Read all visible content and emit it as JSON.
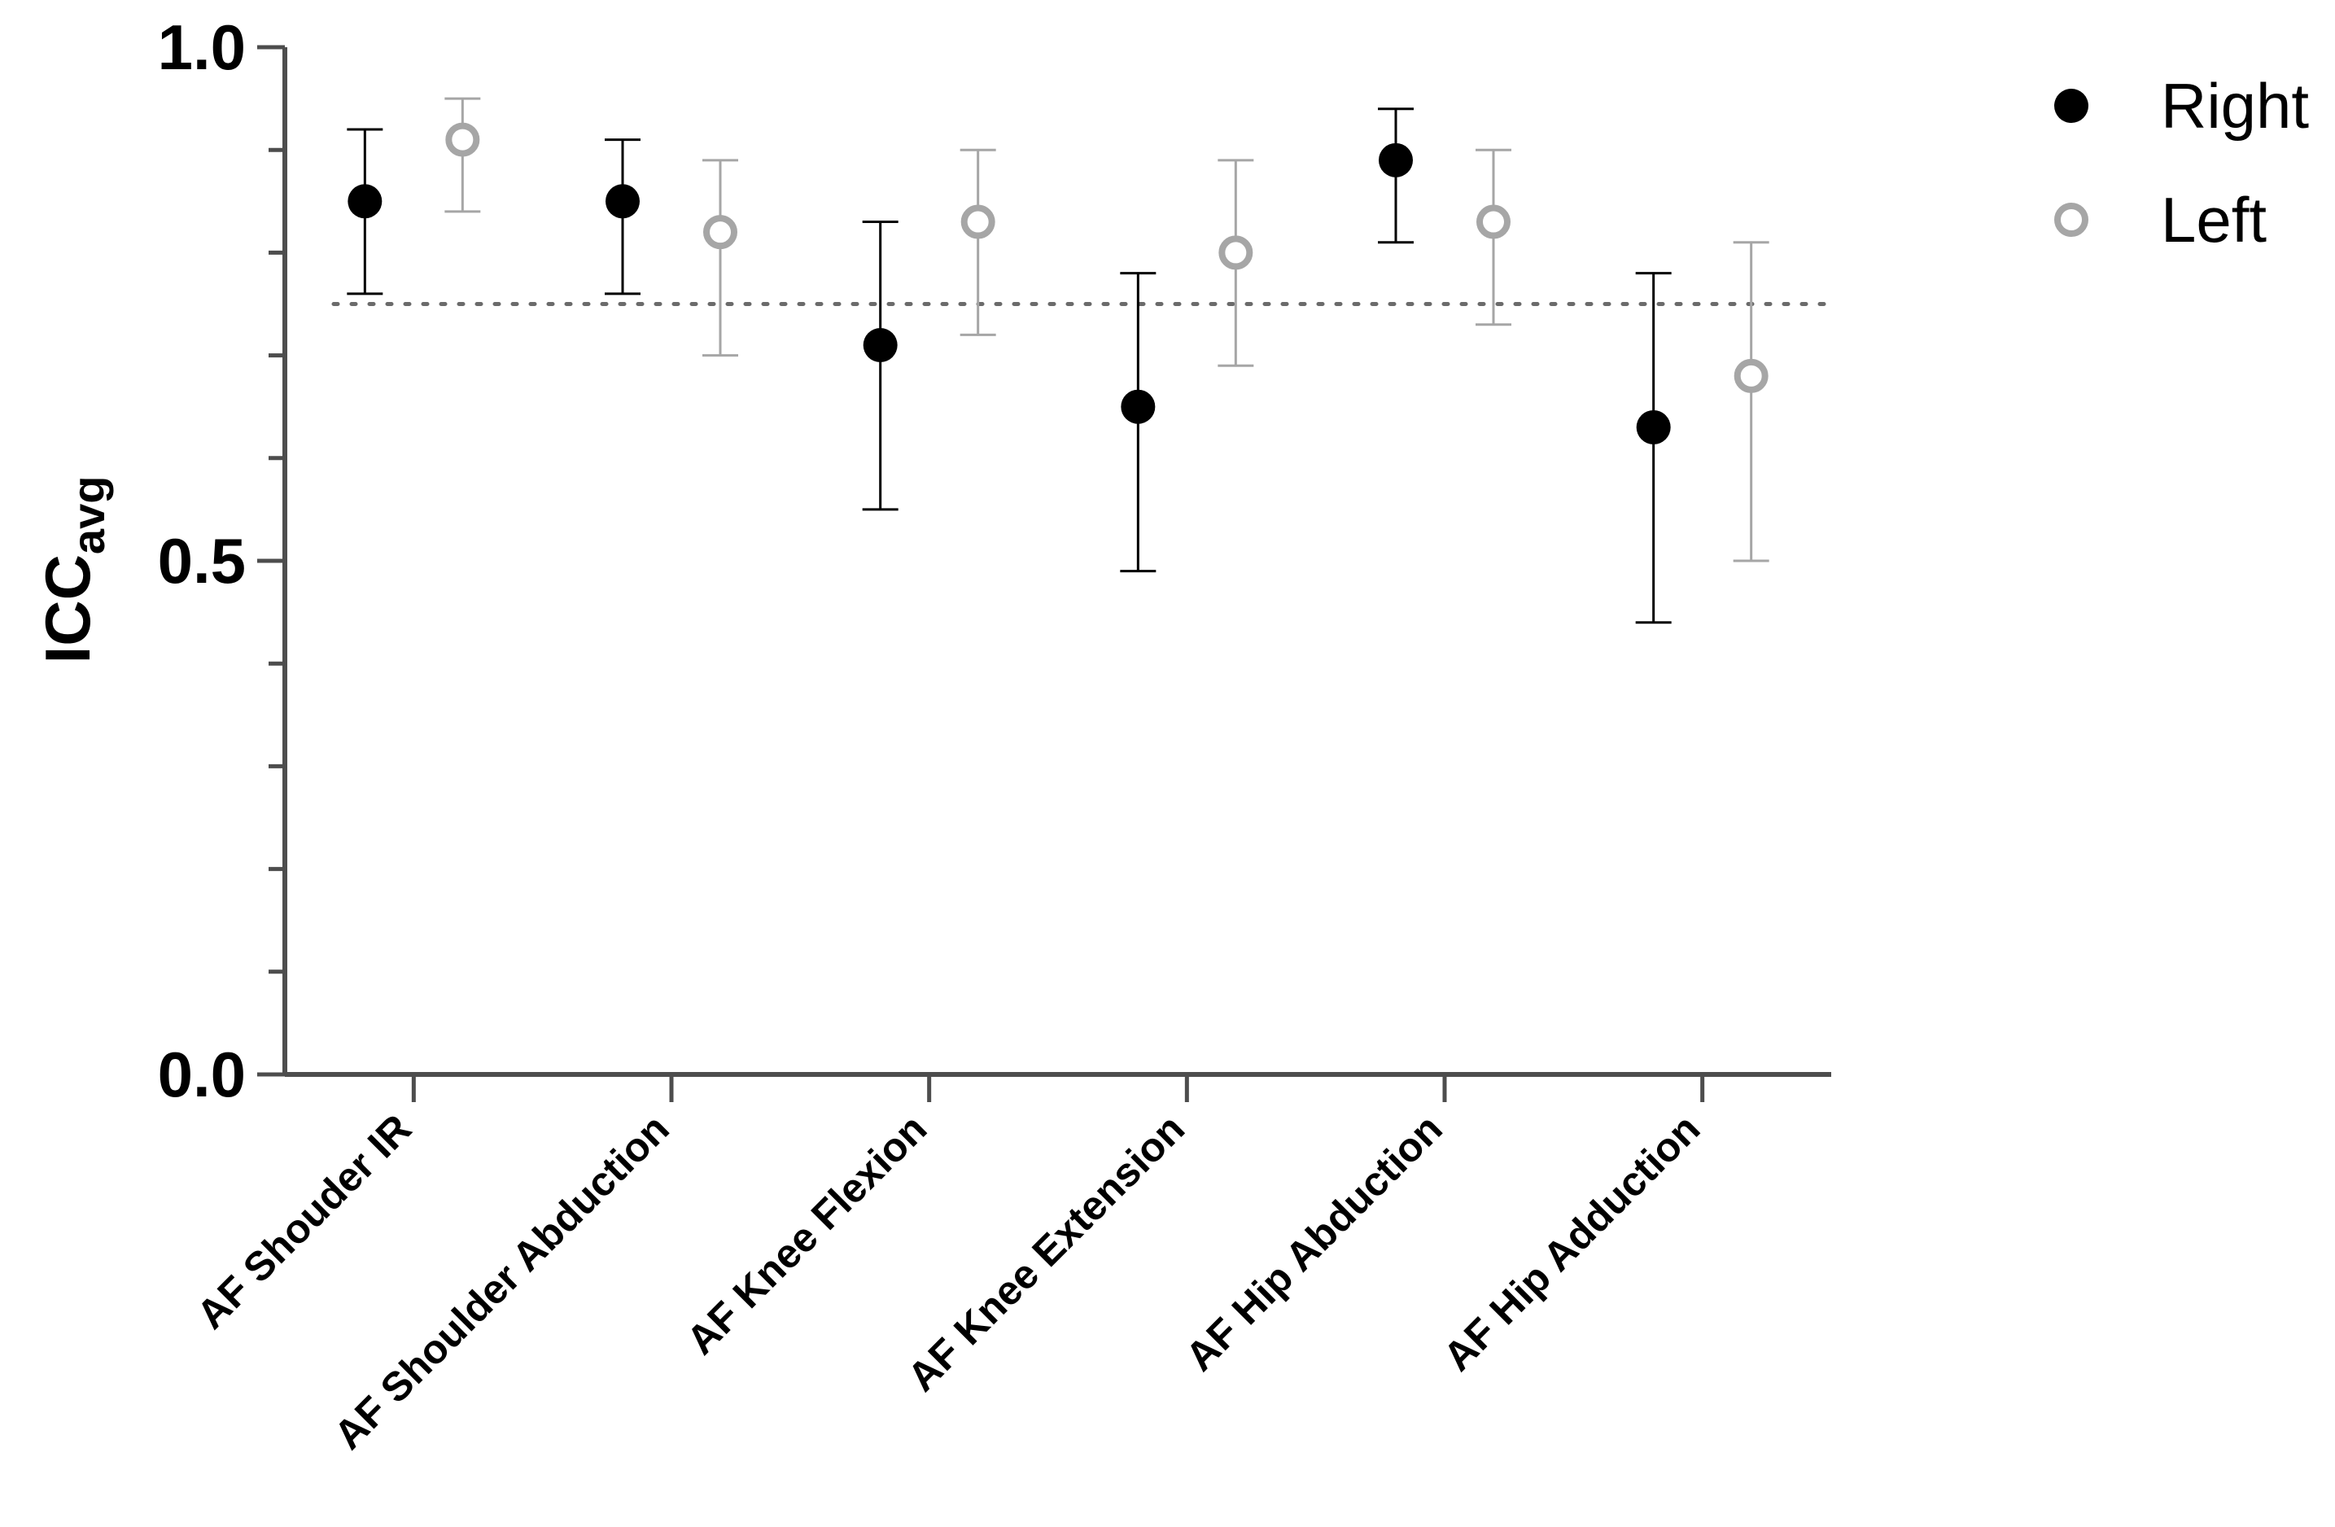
{
  "chart_data": {
    "type": "scatter",
    "title": "",
    "xlabel": "",
    "ylabel": {
      "main": "ICC",
      "sub": "avg"
    },
    "ylim": [
      0,
      1
    ],
    "yticks_major": [
      0,
      0.5,
      1
    ],
    "ytick_labels": [
      "0.0",
      "0.5",
      "1.0"
    ],
    "ytick_minor_step": 0.1,
    "reference_line": {
      "y": 0.75,
      "style": "dotted"
    },
    "grid": false,
    "legend_position": "top-right",
    "categories": [
      "AF Shouder IR",
      "AF Shoulder Abduction",
      "AF Knee Flexion",
      "AF Knee Extension",
      "AF Hip Abduction",
      "AF Hip Adduction"
    ],
    "series": [
      {
        "name": "Right",
        "marker": "filled-circle",
        "color": "#000000",
        "values": [
          0.85,
          0.85,
          0.71,
          0.65,
          0.89,
          0.63
        ],
        "ci_low": [
          0.76,
          0.76,
          0.55,
          0.49,
          0.81,
          0.44
        ],
        "ci_high": [
          0.92,
          0.91,
          0.83,
          0.78,
          0.94,
          0.78
        ]
      },
      {
        "name": "Left",
        "marker": "open-circle",
        "color": "#a6a6a6",
        "values": [
          0.91,
          0.82,
          0.83,
          0.8,
          0.83,
          0.68
        ],
        "ci_low": [
          0.84,
          0.7,
          0.72,
          0.69,
          0.73,
          0.5
        ],
        "ci_high": [
          0.95,
          0.89,
          0.9,
          0.89,
          0.9,
          0.81
        ]
      }
    ]
  }
}
